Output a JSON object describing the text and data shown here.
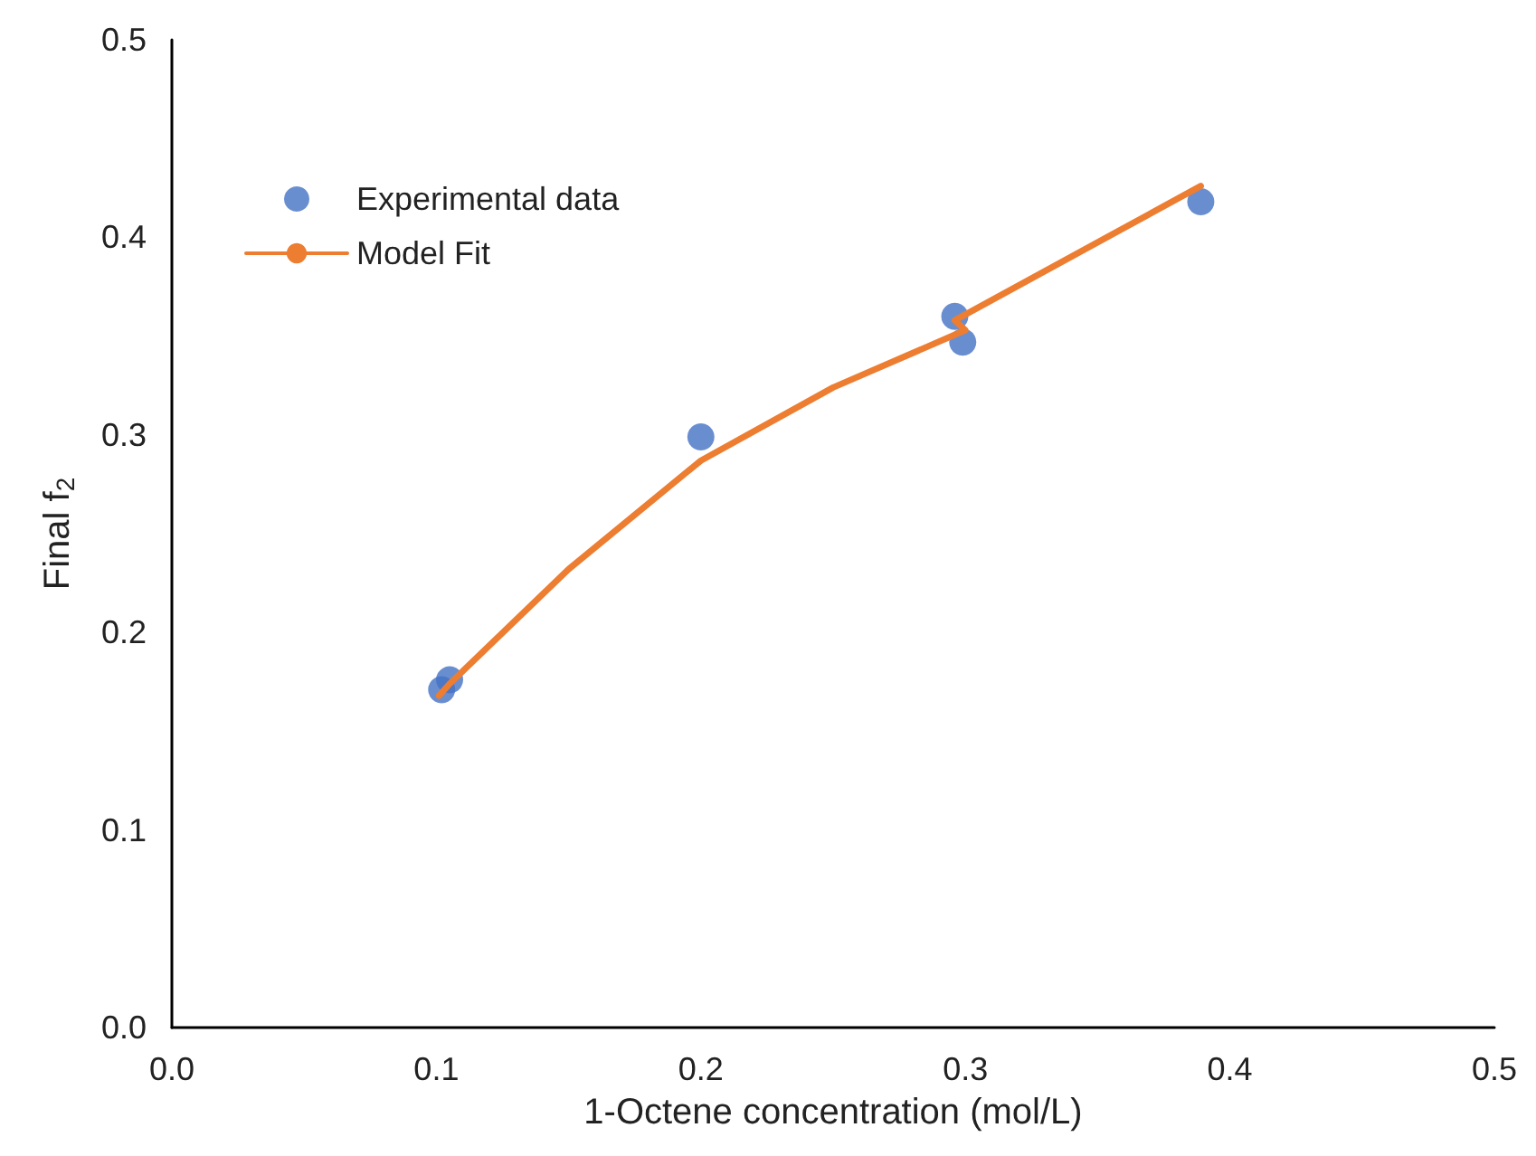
{
  "chart_data": {
    "type": "scatter",
    "xlabel": "1-Octene concentration (mol/L)",
    "ylabel": "Final f$_{2}$",
    "xlim": [
      0,
      0.5
    ],
    "ylim": [
      0,
      0.5
    ],
    "xticks": [
      {
        "value": 0,
        "label": "0.0"
      },
      0.1,
      0.2,
      0.3,
      0.4,
      0.5
    ],
    "yticks": [
      {
        "value": 0,
        "label": "0.0"
      },
      0.1,
      0.2,
      0.3,
      0.4,
      0.5
    ],
    "grid": false,
    "legend": "top left",
    "marker": "circle",
    "series": [
      {
        "name": "Experimental data",
        "color": "#4472c4",
        "x": [
          0.102,
          0.105,
          0.2,
          0.296,
          0.299,
          0.389
        ],
        "values": [
          0.171,
          0.176,
          0.299,
          0.36,
          0.347,
          0.418
        ]
      },
      {
        "name": "Model Fit",
        "type": "line",
        "color": "#ed7d31",
        "line_style": "solid",
        "marker": "none",
        "x": [
          0.101,
          0.105,
          0.15,
          0.2,
          0.25,
          0.3,
          0.296,
          0.389
        ],
        "values": [
          0.168,
          0.174,
          0.232,
          0.287,
          0.324,
          0.353,
          0.358,
          0.426
        ]
      }
    ]
  }
}
